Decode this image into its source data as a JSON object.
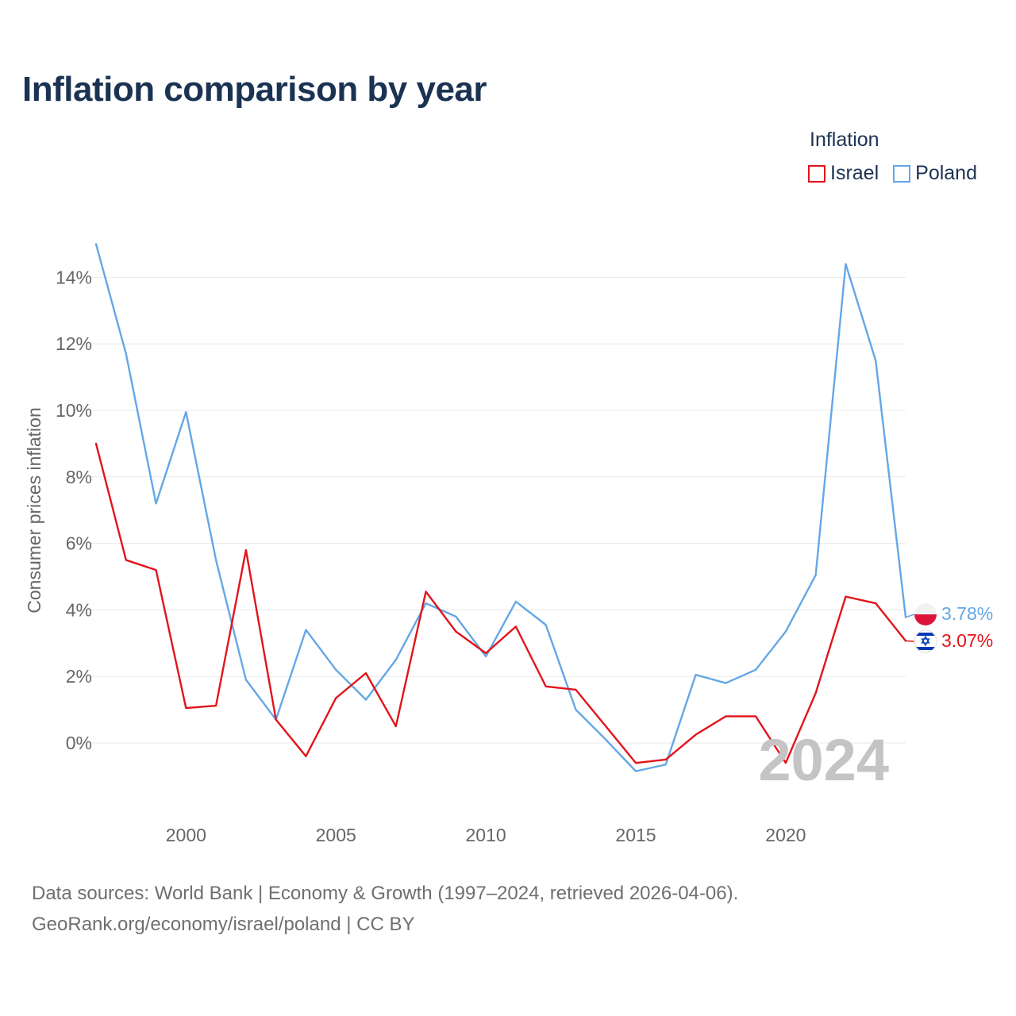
{
  "title": "Inflation comparison by year",
  "legend": {
    "title": "Inflation",
    "items": [
      {
        "label": "Israel",
        "color": "#e3131b"
      },
      {
        "label": "Poland",
        "color": "#64a7e6"
      }
    ]
  },
  "watermark_year": "2024",
  "footer": {
    "line1": "Data sources: World Bank | Economy & Growth (1997–2024, retrieved 2026-04-06).",
    "line2": "GeoRank.org/economy/israel/poland | CC BY"
  },
  "chart_data": {
    "type": "line",
    "title": "Inflation comparison by year",
    "xlabel": "",
    "ylabel": "Consumer prices inflation",
    "xlim": [
      1997,
      2024
    ],
    "ylim": [
      -2,
      15
    ],
    "x_ticks": [
      2000,
      2005,
      2010,
      2015,
      2020
    ],
    "y_ticks": [
      0,
      2,
      4,
      6,
      8,
      10,
      12,
      14
    ],
    "y_tick_labels": [
      "0%",
      "2%",
      "4%",
      "6%",
      "8%",
      "10%",
      "12%",
      "14%"
    ],
    "grid": true,
    "legend_position": "top-right",
    "x": [
      1997,
      1998,
      1999,
      2000,
      2001,
      2002,
      2003,
      2004,
      2005,
      2006,
      2007,
      2008,
      2009,
      2010,
      2011,
      2012,
      2013,
      2014,
      2015,
      2016,
      2017,
      2018,
      2019,
      2020,
      2021,
      2022,
      2023,
      2024
    ],
    "series": [
      {
        "name": "Israel",
        "color": "#e3131b",
        "end_label": "3.07%",
        "values": [
          9.0,
          5.5,
          5.2,
          1.05,
          1.12,
          5.8,
          0.7,
          -0.4,
          1.35,
          2.1,
          0.5,
          4.55,
          3.35,
          2.7,
          3.5,
          1.7,
          1.6,
          0.5,
          -0.6,
          -0.5,
          0.25,
          0.8,
          0.8,
          -0.6,
          1.5,
          4.4,
          4.2,
          3.07
        ]
      },
      {
        "name": "Poland",
        "color": "#64a7e6",
        "end_label": "3.78%",
        "values": [
          15.0,
          11.7,
          7.2,
          9.95,
          5.5,
          1.9,
          0.7,
          3.4,
          2.2,
          1.3,
          2.5,
          4.2,
          3.8,
          2.6,
          4.25,
          3.55,
          1.0,
          0.1,
          -0.85,
          -0.65,
          2.05,
          1.8,
          2.2,
          3.35,
          5.05,
          14.4,
          11.5,
          3.78
        ]
      }
    ]
  }
}
